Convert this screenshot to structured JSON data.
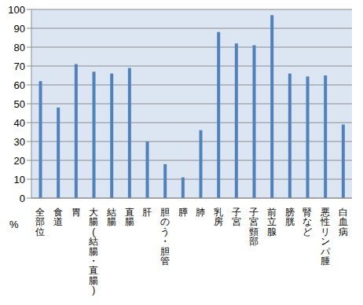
{
  "chart_data": {
    "type": "bar",
    "y_label": "%",
    "categories": [
      "全部位",
      "食道",
      "胃",
      "大腸(結腸・直腸)",
      "結腸",
      "直腸",
      "肝",
      "胆のう・胆管",
      "膵",
      "肺",
      "乳房",
      "子宮",
      "子宮頸部",
      "前立腺",
      "膀胱",
      "腎など",
      "悪性リンパ腫",
      "白血病"
    ],
    "values": [
      62,
      48,
      71,
      67,
      66,
      69,
      30,
      18,
      11,
      36,
      88,
      82,
      81,
      97,
      66,
      64.5,
      65,
      39
    ],
    "color": "#4f81bd",
    "ylim": [
      0,
      100
    ],
    "yticks": [
      0,
      10,
      20,
      30,
      40,
      50,
      60,
      70,
      80,
      90,
      100
    ],
    "grid": true
  }
}
